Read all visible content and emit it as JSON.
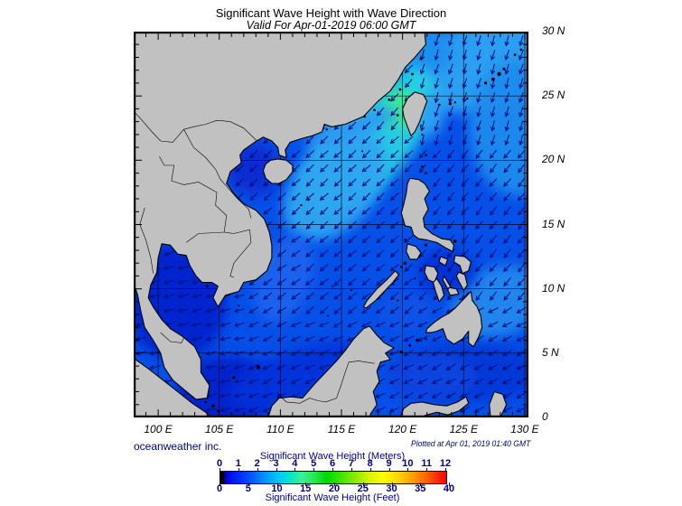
{
  "title": "Significant Wave Height with Wave Direction",
  "subtitle": "Valid For Apr-01-2019 06:00 GMT",
  "credit": "oceanweather inc.",
  "plotted_at": "Plotted at Apr 01, 2019 01:40 GMT",
  "map": {
    "lon_labels": [
      "100 E",
      "105 E",
      "110 E",
      "115 E",
      "120 E",
      "125 E",
      "130 E"
    ],
    "lon_values": [
      100,
      105,
      110,
      115,
      120,
      125,
      130
    ],
    "lat_labels": [
      "30 N",
      "25 N",
      "20 N",
      "15 N",
      "10 N",
      "5 N",
      "0"
    ],
    "lat_values": [
      30,
      25,
      20,
      15,
      10,
      5,
      0
    ],
    "extent": {
      "lon_min": 98,
      "lon_max": 130.3,
      "lat_min": 0,
      "lat_max": 30
    },
    "grid_step_deg": 5,
    "minor_tick_step_deg": 1
  },
  "colorbar": {
    "meters_label": "Significant Wave Height (Meters)",
    "feet_label": "Significant Wave Height (Feet)",
    "meters_ticks": [
      0,
      1,
      2,
      3,
      4,
      5,
      6,
      7,
      8,
      9,
      10,
      11,
      12
    ],
    "feet_ticks": [
      0,
      5,
      10,
      15,
      20,
      25,
      30,
      35,
      40
    ],
    "meters_max": 12,
    "gradient_stops": [
      [
        "#000000",
        0
      ],
      [
        "#000000",
        1.5
      ],
      [
        "#0000d0",
        2
      ],
      [
        "#0028ff",
        8
      ],
      [
        "#0064ff",
        15
      ],
      [
        "#00a0ff",
        21
      ],
      [
        "#00d2f0",
        27
      ],
      [
        "#00e8c8",
        31
      ],
      [
        "#3cf096",
        36
      ],
      [
        "#2ce858",
        41
      ],
      [
        "#00d800",
        47
      ],
      [
        "#3ce400",
        53
      ],
      [
        "#90ec00",
        60
      ],
      [
        "#d8f400",
        66
      ],
      [
        "#fffc00",
        72
      ],
      [
        "#ffd800",
        78
      ],
      [
        "#ffa800",
        84
      ],
      [
        "#ff7000",
        90
      ],
      [
        "#ff3800",
        95
      ],
      [
        "#ff0000",
        100
      ]
    ]
  },
  "colors": {
    "land": "#c1c1c1",
    "coast": "#000000",
    "ocean_base": "#0550e8",
    "cyan_patch": "#27d2e4",
    "green_patch": "#3cee8e",
    "arrow": "#001080",
    "grid": "#000000",
    "navy_text": "#00008b"
  }
}
